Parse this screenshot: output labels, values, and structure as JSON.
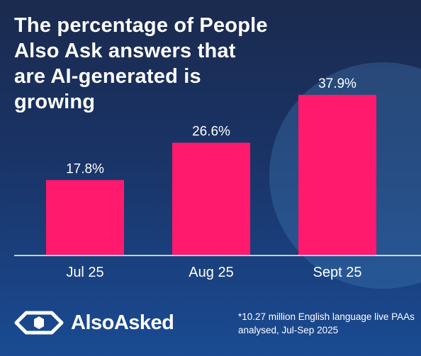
{
  "title": "The percentage of People Also Ask answers that are AI-generated is growing",
  "brand": {
    "name": "AlsoAsked",
    "logo_icon": "alsoasked-logo-icon"
  },
  "footnote": "*10.27 million English language live PAAs analysed, Jul-Sep 2025",
  "colors": {
    "bar": "#ff1a6e",
    "axis": "#ffffff",
    "background_top": "#1b2a4e",
    "background_bottom": "#1a4b93"
  },
  "chart_data": {
    "type": "bar",
    "title": "The percentage of People Also Ask answers that are AI-generated is growing",
    "xlabel": "",
    "ylabel": "",
    "categories": [
      "Jul 25",
      "Aug 25",
      "Sept 25"
    ],
    "values": [
      17.8,
      26.6,
      37.9
    ],
    "data_labels": [
      "17.8%",
      "26.6%",
      "37.9%"
    ],
    "unit": "%",
    "ylim": [
      0,
      40
    ],
    "grid": false,
    "legend": "none"
  }
}
